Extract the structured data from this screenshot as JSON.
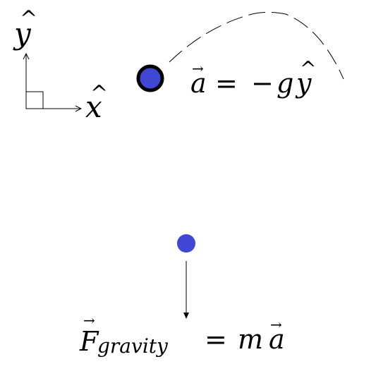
{
  "axes": {
    "y_label": "y",
    "x_label": "x",
    "hat_mark": "^"
  },
  "projectile": {
    "fill_color": "#4047d4",
    "outline_color": "#000000",
    "equation": {
      "lhs": "a",
      "equals": "=",
      "minus": "−",
      "g": "g",
      "unit": "y"
    }
  },
  "force_body": {
    "fill_color": "#4047d4",
    "equation": {
      "force_symbol": "F",
      "subscript": "gravity",
      "equals": "=",
      "mass": "m",
      "acc": "a"
    }
  },
  "vector_arrow_mark": "→"
}
